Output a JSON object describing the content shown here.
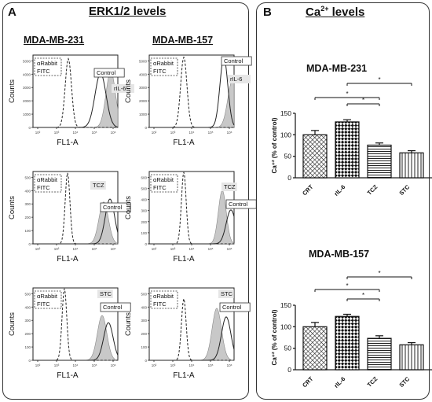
{
  "panelA": {
    "label": "A",
    "title": "ERK1/2 levels",
    "columns": [
      "MDA-MB-231",
      "MDA-MB-157"
    ]
  },
  "panelB": {
    "label": "B",
    "title_main": "Ca",
    "title_sup": "2+",
    "title_rest": " levels"
  },
  "colors": {
    "border": "#333333",
    "shaded": "#c8c8c8",
    "line": "#222222"
  },
  "chart_data": [
    {
      "type": "area",
      "panel": "A",
      "row": 1,
      "col": 1,
      "xlabel": "FL1-A",
      "ylabel": "Counts",
      "xscale": "log",
      "legend": [
        "Control",
        "rIL-6"
      ],
      "antibody_box": [
        "αRabbit",
        "FITC"
      ],
      "yticks": [
        "0",
        "1000",
        "2000",
        "3000",
        "4000",
        "5000"
      ],
      "xticks": [
        "10²",
        "10³",
        "10⁴",
        "10⁵",
        "10⁶"
      ]
    },
    {
      "type": "area",
      "panel": "A",
      "row": 1,
      "col": 2,
      "xlabel": "FL1-A",
      "ylabel": "Counts",
      "xscale": "log",
      "legend": [
        "Control",
        "rIL-6"
      ],
      "antibody_box": [
        "αRabbit",
        "FITC"
      ],
      "yticks": [
        "0",
        "1000",
        "2000",
        "3000",
        "4000",
        "5000"
      ],
      "xticks": [
        "10²",
        "10³",
        "10⁴",
        "10⁵",
        "10⁶"
      ]
    },
    {
      "type": "area",
      "panel": "A",
      "row": 2,
      "col": 1,
      "xlabel": "FL1-A",
      "ylabel": "Counts",
      "xscale": "log",
      "legend": [
        "TCZ",
        "Control"
      ],
      "antibody_box": [
        "αRabbit",
        "FITC"
      ],
      "yticks": [
        "0",
        "100",
        "200",
        "300",
        "400",
        "500"
      ],
      "xticks": [
        "10²",
        "10³",
        "10⁴",
        "10⁵",
        "10⁶"
      ]
    },
    {
      "type": "area",
      "panel": "A",
      "row": 2,
      "col": 2,
      "xlabel": "FL1-A",
      "ylabel": "Counts",
      "xscale": "log",
      "legend": [
        "TCZ",
        "Control"
      ],
      "antibody_box": [
        "αRabbit",
        "FITC"
      ],
      "yticks": [
        "0",
        "100",
        "200",
        "300",
        "400",
        "500",
        "600"
      ],
      "xticks": [
        "10²",
        "10³",
        "10⁴",
        "10⁵",
        "10⁶"
      ]
    },
    {
      "type": "area",
      "panel": "A",
      "row": 3,
      "col": 1,
      "xlabel": "FL1-A",
      "ylabel": "Counts",
      "xscale": "log",
      "legend": [
        "STC",
        "Control"
      ],
      "antibody_box": [
        "αRabbit",
        "FITC"
      ],
      "yticks": [
        "0",
        "100",
        "200",
        "300",
        "400",
        "500"
      ],
      "xticks": [
        "10²",
        "10³",
        "10⁴",
        "10⁵",
        "10⁶"
      ]
    },
    {
      "type": "area",
      "panel": "A",
      "row": 3,
      "col": 2,
      "xlabel": "FL1-A",
      "ylabel": "Counts",
      "xscale": "log",
      "legend": [
        "STC",
        "Control"
      ],
      "antibody_box": [
        "αRabbit",
        "FITC"
      ],
      "yticks": [
        "0",
        "100",
        "200",
        "300",
        "400",
        "500"
      ],
      "xticks": [
        "10²",
        "10³",
        "10⁴",
        "10⁵",
        "10⁶"
      ]
    },
    {
      "type": "bar",
      "panel": "B",
      "title": "MDA-MB-231",
      "categories": [
        "CRT",
        "rIL-6",
        "TCZ",
        "STC"
      ],
      "values": [
        100,
        130,
        76,
        58
      ],
      "errors": [
        10,
        5,
        5,
        5
      ],
      "ylabel": "Ca⁺² (% of control)",
      "ylim": [
        0,
        150
      ],
      "yticks": [
        0,
        50,
        100,
        150
      ],
      "significance": [
        [
          "CRT",
          "TCZ"
        ],
        [
          "rIL-6",
          "TCZ"
        ],
        [
          "rIL-6",
          "STC"
        ]
      ],
      "sig_label": "*"
    },
    {
      "type": "bar",
      "panel": "B",
      "title": "MDA-MB-157",
      "categories": [
        "CRT",
        "rIL-6",
        "TCZ",
        "STC"
      ],
      "values": [
        100,
        124,
        73,
        58
      ],
      "errors": [
        10,
        5,
        6,
        5
      ],
      "ylabel": "Ca⁺² (% of control)",
      "ylim": [
        0,
        150
      ],
      "yticks": [
        0,
        50,
        100,
        150
      ],
      "significance": [
        [
          "CRT",
          "TCZ"
        ],
        [
          "rIL-6",
          "TCZ"
        ],
        [
          "rIL-6",
          "STC"
        ]
      ],
      "sig_label": "*"
    }
  ]
}
